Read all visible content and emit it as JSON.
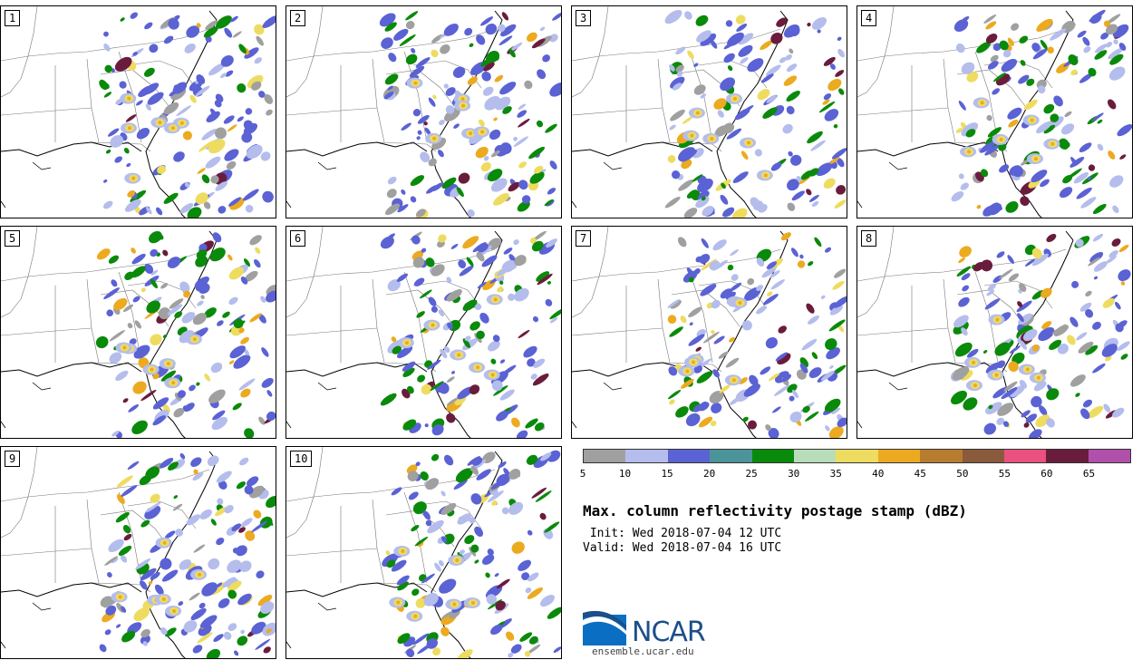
{
  "panels": [
    "1",
    "2",
    "3",
    "4",
    "5",
    "6",
    "7",
    "8",
    "9",
    "10"
  ],
  "colorbar": {
    "colors": [
      "#a0a0a0",
      "#b4bdec",
      "#5a62d4",
      "#4b9499",
      "#0a8a0a",
      "#b8ddb8",
      "#eedc60",
      "#ecaa20",
      "#b87c30",
      "#8a5a3c",
      "#ea5080",
      "#6a1c3c",
      "#b050aa"
    ],
    "ticks": [
      "5",
      "10",
      "15",
      "20",
      "25",
      "30",
      "35",
      "40",
      "45",
      "50",
      "55",
      "60",
      "65"
    ]
  },
  "title": "Max. column reflectivity postage stamp (dBZ)",
  "init": " Init: Wed 2018-07-04 12 UTC",
  "valid": "Valid: Wed 2018-07-04 16 UTC",
  "logo": {
    "name": "NCAR",
    "url": "ensemble.ucar.edu"
  }
}
